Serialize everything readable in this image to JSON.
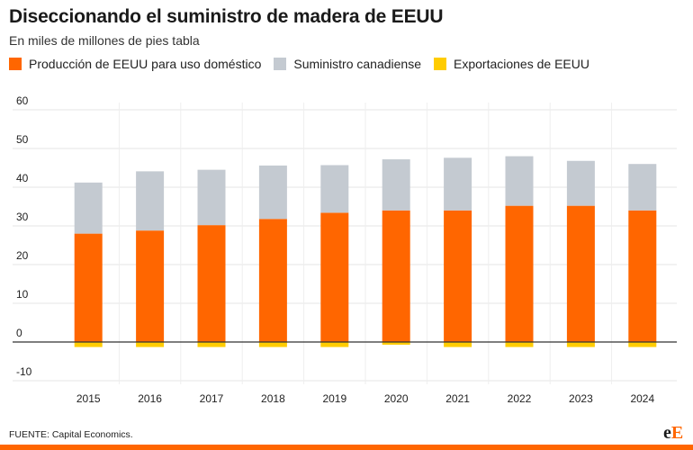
{
  "header": {
    "title": "Diseccionando el suministro de madera de EEUU",
    "subtitle": "En miles de millones de pies tabla"
  },
  "legend": [
    {
      "label": "Producción de EEUU para uso doméstico",
      "color": "#ff6600"
    },
    {
      "label": "Suministro canadiense",
      "color": "#c4cad1"
    },
    {
      "label": "Exportaciones de EEUU",
      "color": "#ffcc00"
    }
  ],
  "chart_data": {
    "type": "bar",
    "stacked": true,
    "categories": [
      "2015",
      "2016",
      "2017",
      "2018",
      "2019",
      "2020",
      "2021",
      "2022",
      "2023",
      "2024"
    ],
    "series": [
      {
        "name": "Producción de EEUU para uso doméstico",
        "color": "#ff6600",
        "values": [
          28.0,
          28.8,
          30.2,
          31.8,
          33.4,
          34.0,
          34.0,
          35.2,
          35.2,
          34.0
        ]
      },
      {
        "name": "Suministro canadiense",
        "color": "#c4cad1",
        "values": [
          13.2,
          15.3,
          14.3,
          13.8,
          12.3,
          13.2,
          13.6,
          12.8,
          11.6,
          12.0
        ]
      },
      {
        "name": "Exportaciones de EEUU",
        "color": "#ffcc00",
        "values": [
          -1.3,
          -1.3,
          -1.3,
          -1.3,
          -1.3,
          -0.7,
          -1.3,
          -1.3,
          -1.3,
          -1.3
        ]
      }
    ],
    "yticks": [
      60,
      50,
      40,
      30,
      20,
      10,
      0,
      -10
    ],
    "ylim": [
      -10,
      60
    ],
    "grid": true,
    "legend_position": "top-left"
  },
  "footer": {
    "source": "FUENTE: Capital Economics.",
    "brand_e": "e",
    "brand_E": "E"
  }
}
